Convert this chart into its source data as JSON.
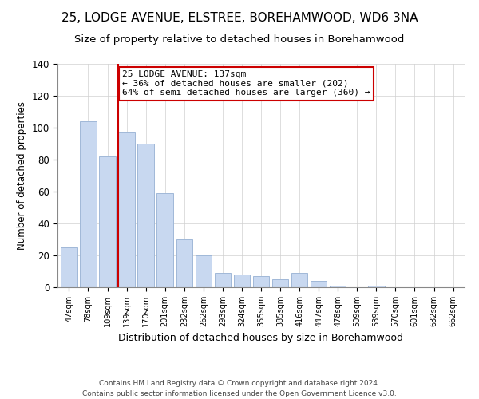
{
  "title": "25, LODGE AVENUE, ELSTREE, BOREHAMWOOD, WD6 3NA",
  "subtitle": "Size of property relative to detached houses in Borehamwood",
  "xlabel": "Distribution of detached houses by size in Borehamwood",
  "ylabel": "Number of detached properties",
  "bar_color": "#c8d8f0",
  "bar_edge_color": "#a0b8d8",
  "categories": [
    "47sqm",
    "78sqm",
    "109sqm",
    "139sqm",
    "170sqm",
    "201sqm",
    "232sqm",
    "262sqm",
    "293sqm",
    "324sqm",
    "355sqm",
    "385sqm",
    "416sqm",
    "447sqm",
    "478sqm",
    "509sqm",
    "539sqm",
    "570sqm",
    "601sqm",
    "632sqm",
    "662sqm"
  ],
  "values": [
    25,
    104,
    82,
    97,
    90,
    59,
    30,
    20,
    9,
    8,
    7,
    5,
    9,
    4,
    1,
    0,
    1,
    0,
    0,
    0,
    0
  ],
  "ylim": [
    0,
    140
  ],
  "yticks": [
    0,
    20,
    40,
    60,
    80,
    100,
    120,
    140
  ],
  "vline_index": 3,
  "vline_color": "#cc0000",
  "annotation_title": "25 LODGE AVENUE: 137sqm",
  "annotation_line1": "← 36% of detached houses are smaller (202)",
  "annotation_line2": "64% of semi-detached houses are larger (360) →",
  "annotation_box_edge": "#cc0000",
  "footer1": "Contains HM Land Registry data © Crown copyright and database right 2024.",
  "footer2": "Contains public sector information licensed under the Open Government Licence v3.0.",
  "background_color": "#ffffff",
  "title_fontsize": 11,
  "subtitle_fontsize": 9.5
}
